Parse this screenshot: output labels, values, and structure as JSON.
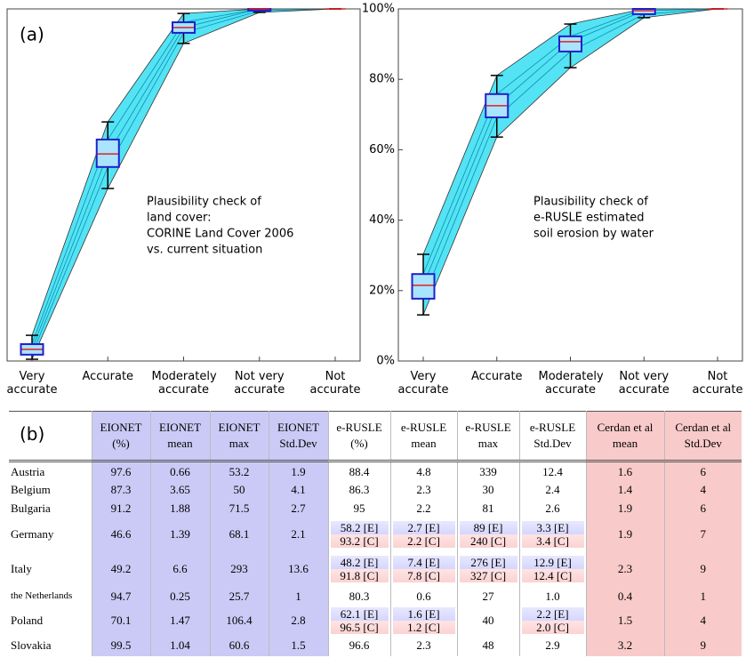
{
  "chart_data": [
    {
      "type": "box",
      "label": "(a)",
      "annotation": [
        "Plausibility check of",
        "land cover:",
        "CORINE Land Cover 2006",
        "vs. current situation"
      ],
      "categories": [
        "Very accurate",
        "Accurate",
        "Moderately accurate",
        "Not very accurate",
        "Not accurate"
      ],
      "low": [
        0.5,
        49,
        90.2,
        99,
        100
      ],
      "q1": [
        1.8,
        55.1,
        93.2,
        99.5,
        100
      ],
      "median": [
        3.3,
        58.8,
        94.7,
        100,
        100
      ],
      "q3": [
        4.8,
        62.9,
        96.2,
        100,
        100
      ],
      "high": [
        7.3,
        67.9,
        98.7,
        100,
        100
      ],
      "ylim": [
        0,
        100
      ],
      "box_color": "#2020cc",
      "box_fill": "#a9e4ff",
      "median_color": "#e02020",
      "whisker_color": "#000000",
      "spread_color": "#19d9f0"
    },
    {
      "type": "box",
      "annotation": [
        "Plausibility check of",
        "e-RUSLE estimated",
        "soil erosion by water"
      ],
      "categories": [
        "Very accurate",
        "Accurate",
        "Moderately accurate",
        "Not very accurate",
        "Not accurate"
      ],
      "low": [
        13.1,
        63.6,
        83.3,
        97.5,
        100
      ],
      "q1": [
        17.7,
        69.2,
        87.9,
        98.5,
        100
      ],
      "median": [
        21.5,
        72.5,
        90.7,
        99.5,
        100
      ],
      "q3": [
        24.7,
        75.8,
        92.2,
        100,
        100
      ],
      "high": [
        30.3,
        81.1,
        95.7,
        100,
        100
      ],
      "ylim": [
        0,
        100
      ],
      "yticks": [
        {
          "value": 0,
          "label": "0%"
        },
        {
          "value": 20,
          "label": "20%"
        },
        {
          "value": 40,
          "label": "40%"
        },
        {
          "value": 60,
          "label": "60%"
        },
        {
          "value": 80,
          "label": "80%"
        },
        {
          "value": 100,
          "label": "100%"
        }
      ],
      "box_color": "#2020cc",
      "box_fill": "#a9e4ff",
      "median_color": "#e02020",
      "whisker_color": "#000000",
      "spread_color": "#19d9f0"
    }
  ],
  "table": {
    "label": "(b)",
    "header": [
      [
        "",
        ""
      ],
      [
        "EIONET",
        "(%)"
      ],
      [
        "EIONET",
        "mean"
      ],
      [
        "EIONET",
        "max"
      ],
      [
        "EIONET",
        "Std.Dev"
      ],
      [
        "e-RUSLE",
        "(%)"
      ],
      [
        "e-RUSLE",
        "mean"
      ],
      [
        "e-RUSLE",
        "max"
      ],
      [
        "e-RUSLE",
        "Std.Dev"
      ],
      [
        "Cerdan et al",
        "mean"
      ],
      [
        "Cerdan et al",
        "Std.Dev"
      ]
    ],
    "rows": [
      [
        "Austria",
        "97.6",
        "0.66",
        "53.2",
        "1.9",
        "88.4",
        "4.8",
        "339",
        "12.4",
        "1.6",
        "6"
      ],
      [
        "Belgium",
        "87.3",
        "3.65",
        "50",
        "4.1",
        "86.3",
        "2.3",
        "30",
        "2.4",
        "1.4",
        "4"
      ],
      [
        "Bulgaria",
        "91.2",
        "1.88",
        "71.5",
        "2.7",
        "95",
        "2.2",
        "81",
        "2.6",
        "1.9",
        "6"
      ],
      [
        "Germany",
        "46.6",
        "1.39",
        "68.1",
        "2.1",
        [
          "58.2 [E]",
          "93.2 [C]"
        ],
        [
          "2.7 [E]",
          "2.2 [C]"
        ],
        [
          "89 [E]",
          "240 [C]"
        ],
        [
          "3.3 [E]",
          "3.4 [C]"
        ],
        "1.9",
        "7"
      ],
      [
        "Italy",
        "49.2",
        "6.6",
        "293",
        "13.6",
        [
          "48.2 [E]",
          "91.8 [C]"
        ],
        [
          "7.4 [E]",
          "7.8 [C]"
        ],
        [
          "276 [E]",
          "327 [C]"
        ],
        [
          "12.9 [E]",
          "12.4 [C]"
        ],
        "2.3",
        "9"
      ],
      [
        "the Netherlands",
        "94.7",
        "0.25",
        "25.7",
        "1",
        "80.3",
        "0.6",
        "27",
        "1.0",
        "0.4",
        "1"
      ],
      [
        "Poland",
        "70.1",
        "1.47",
        "106.4",
        "2.8",
        [
          "62.1 [E]",
          "96.5 [C]"
        ],
        [
          "1.6 [E]",
          "1.2 [C]"
        ],
        "40",
        [
          "2.2 [E]",
          "2.0 [C]"
        ],
        "1.5",
        "4"
      ],
      [
        "Slovakia",
        "99.5",
        "1.04",
        "60.6",
        "1.5",
        "96.6",
        "2.3",
        "48",
        "2.9",
        "3.2",
        "9"
      ]
    ]
  }
}
